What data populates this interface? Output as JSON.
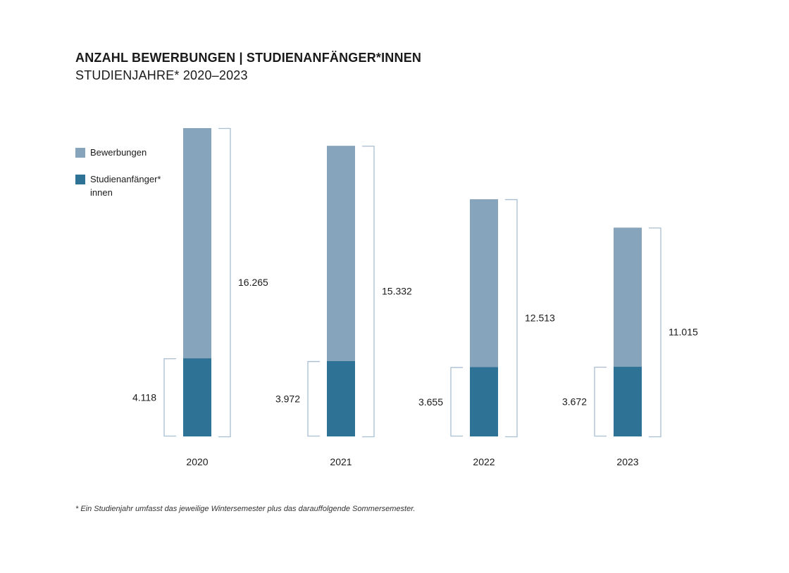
{
  "chart_data": {
    "type": "bar",
    "title": "ANZAHL BEWERBUNGEN | STUDIENANFÄNGER*INNEN",
    "subtitle": "STUDIENJAHRE* 2020–2023",
    "categories": [
      "2020",
      "2021",
      "2022",
      "2023"
    ],
    "series": [
      {
        "name": "Bewerbungen",
        "values": [
          16265,
          15332,
          12513,
          11015
        ],
        "labels": [
          "16.265",
          "15.332",
          "12.513",
          "11.015"
        ],
        "color": "#86A4BB"
      },
      {
        "name": "Studienanfänger* innen",
        "values": [
          4118,
          3972,
          3655,
          3672
        ],
        "labels": [
          "4.118",
          "3.972",
          "3.655",
          "3.672"
        ],
        "color": "#2E7295"
      }
    ],
    "legend": {
      "items": [
        {
          "label": "Bewerbungen",
          "line2": ""
        },
        {
          "label": "Studienanfänger*",
          "line2": "innen"
        }
      ]
    },
    "ylim": [
      0,
      16265
    ],
    "bracket_color": "#A9BED2",
    "footnote": "* Ein Studienjahr umfasst das jeweilige Wintersemester plus das darauffolgende Sommersemester."
  }
}
